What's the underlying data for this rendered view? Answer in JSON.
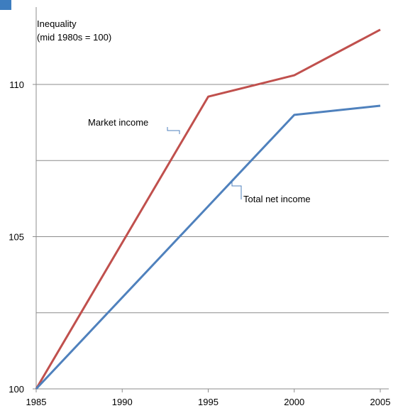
{
  "chart_data": {
    "type": "line",
    "title_lines": [
      "Inequality",
      "(mid 1980s = 100)"
    ],
    "xlabel": "",
    "ylabel": "",
    "x": [
      1985,
      1995,
      2000,
      2005
    ],
    "x_ticks": [
      "1985",
      "1990",
      "1995",
      "2000",
      "2005"
    ],
    "x_tick_values": [
      1985,
      1990,
      1995,
      2000,
      2005
    ],
    "y_ticks": [
      "100",
      "105",
      "110"
    ],
    "y_tick_values": [
      100,
      105,
      110
    ],
    "y_gridlines": [
      100,
      102.5,
      105,
      107.5,
      110
    ],
    "xlim": [
      1985,
      2005
    ],
    "ylim": [
      100,
      111.5
    ],
    "grid": true,
    "series": [
      {
        "name": "Market income",
        "color": "#c0504d",
        "values": [
          100,
          109.6,
          110.3,
          111.8
        ]
      },
      {
        "name": "Total net income",
        "color": "#4f81bd",
        "values": [
          100,
          106.0,
          109.0,
          109.3
        ]
      }
    ],
    "annotations": [
      {
        "text": "Market income",
        "series": 0
      },
      {
        "text": "Total net income",
        "series": 1
      }
    ]
  }
}
